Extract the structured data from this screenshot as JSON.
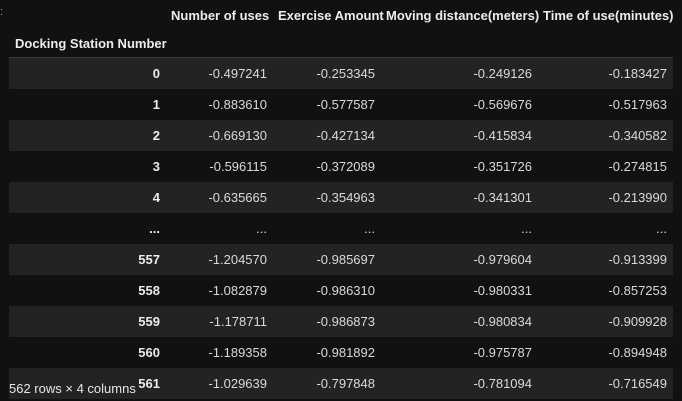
{
  "dataframe": {
    "columns": [
      "Number of uses",
      "Exercise Amount",
      "Moving distance(meters)",
      "Time of use(minutes)"
    ],
    "index_name": "Docking Station Number",
    "rows": [
      {
        "index": "0",
        "values": [
          "-0.497241",
          "-0.253345",
          "-0.249126",
          "-0.183427"
        ]
      },
      {
        "index": "1",
        "values": [
          "-0.883610",
          "-0.577587",
          "-0.569676",
          "-0.517963"
        ]
      },
      {
        "index": "2",
        "values": [
          "-0.669130",
          "-0.427134",
          "-0.415834",
          "-0.340582"
        ]
      },
      {
        "index": "3",
        "values": [
          "-0.596115",
          "-0.372089",
          "-0.351726",
          "-0.274815"
        ]
      },
      {
        "index": "4",
        "values": [
          "-0.635665",
          "-0.354963",
          "-0.341301",
          "-0.213990"
        ]
      },
      {
        "index": "...",
        "values": [
          "...",
          "...",
          "...",
          "..."
        ]
      },
      {
        "index": "557",
        "values": [
          "-1.204570",
          "-0.985697",
          "-0.979604",
          "-0.913399"
        ]
      },
      {
        "index": "558",
        "values": [
          "-1.082879",
          "-0.986310",
          "-0.980331",
          "-0.857253"
        ]
      },
      {
        "index": "559",
        "values": [
          "-1.178711",
          "-0.986873",
          "-0.980834",
          "-0.909928"
        ]
      },
      {
        "index": "560",
        "values": [
          "-1.189358",
          "-0.981892",
          "-0.975787",
          "-0.894948"
        ]
      },
      {
        "index": "561",
        "values": [
          "-1.029639",
          "-0.797848",
          "-0.781094",
          "-0.716549"
        ]
      }
    ],
    "shape_text": "562 rows × 4 columns"
  },
  "colors": {
    "background": "#111111",
    "row_stripe": "#232323",
    "text": "#e6e6e6",
    "header_rule": "#3a3a3a"
  }
}
